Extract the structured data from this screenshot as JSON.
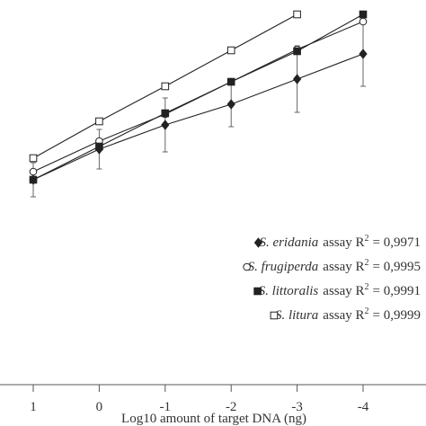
{
  "chart_data": {
    "type": "line",
    "x_label": "Log10 amount of target DNA (ng)",
    "categories": [
      "1",
      "0",
      "-1",
      "-2",
      "-3",
      "-4",
      "-"
    ],
    "ylim": [
      0,
      428
    ],
    "series": [
      {
        "name": "S. eridania",
        "marker": "diamond",
        "filled": true,
        "color": "#222222",
        "values": [
          228,
          262,
          289,
          312,
          340,
          368,
          null
        ],
        "errors": [
          19,
          22,
          30,
          25,
          37,
          36,
          null
        ],
        "legend_text": {
          "prefix": "assay R",
          "sup": "2",
          "suffix": "= 0,9971"
        }
      },
      {
        "name": "S. frugiperda",
        "marker": "circle",
        "filled": false,
        "color": "#222222",
        "values": [
          237,
          271,
          301,
          337,
          373,
          404,
          null
        ],
        "legend_text": {
          "prefix": "assay R",
          "sup": "2",
          "suffix": "= 0,9995"
        }
      },
      {
        "name": "S. littoralis",
        "marker": "square",
        "filled": true,
        "color": "#222222",
        "values": [
          228,
          265,
          302,
          337,
          371,
          412,
          null
        ],
        "legend_text": {
          "prefix": "assay R",
          "sup": "2",
          "suffix": "= 0,9991"
        }
      },
      {
        "name": "S. litura",
        "marker": "square",
        "filled": false,
        "color": "#222222",
        "values": [
          252,
          293,
          332,
          372,
          412,
          null,
          null
        ],
        "legend_text": {
          "prefix": "assay R",
          "sup": "2",
          "suffix": "= 0,9999"
        }
      }
    ]
  }
}
